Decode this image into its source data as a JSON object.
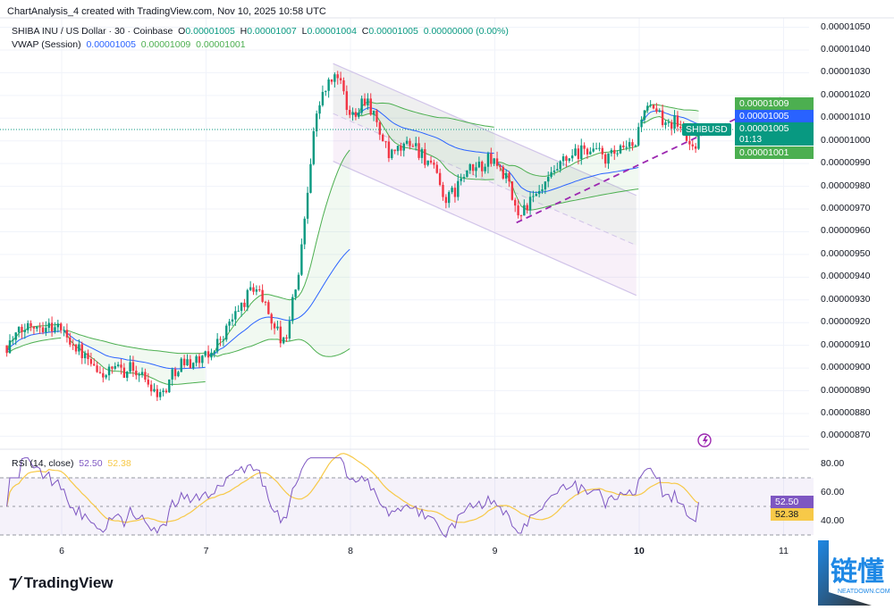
{
  "header": {
    "title": "ChartAnalysis_4 created with TradingView.com, Nov 10, 2025 10:58 UTC"
  },
  "legend": {
    "symbol": "SHIBA INU / US Dollar · 30 · Coinbase",
    "open_label": "O",
    "open": "0.00001005",
    "high_label": "H",
    "high": "0.00001007",
    "low_label": "L",
    "low": "0.00001004",
    "close_label": "C",
    "close": "0.00001005",
    "change": "0.00000000 (0.00%)",
    "vwap_label": "VWAP (Session)",
    "vwap": "0.00001005",
    "vwap_upper": "0.00001009",
    "vwap_lower": "0.00001001"
  },
  "price_tags": {
    "upper_band": "0.00001009",
    "vwap": "0.00001005",
    "last": "0.00001005",
    "countdown": "01:13",
    "lower_band": "0.00001001",
    "symbol": "SHIBUSD"
  },
  "rsi": {
    "label": "RSI (14, close)",
    "value": "52.50",
    "ma": "52.38",
    "axis": [
      "80.00",
      "60.00",
      "40.00"
    ]
  },
  "colors": {
    "up": "#089981",
    "down": "#f23645",
    "vwap": "#2962ff",
    "band": "#4caf50",
    "rsi": "#7e57c2",
    "rsi_ma": "#f7c948",
    "trend": "#9c27b0"
  },
  "branding": {
    "logo": "TradingView",
    "watermark": "链懂",
    "watermark_sub": "NEATDOWN.COM"
  },
  "chart_data": {
    "type": "candlestick",
    "title": "SHIBA INU / US Dollar · 30 · Coinbase",
    "price_unit": "1e-8 USD",
    "x_ticks": [
      "6",
      "7",
      "8",
      "9",
      "10",
      "11"
    ],
    "y_ticks": [
      "0.00001050",
      "0.00001040",
      "0.00001030",
      "0.00001020",
      "0.00001010",
      "0.00001000",
      "0.00000990",
      "0.00000980",
      "0.00000970",
      "0.00000960",
      "0.00000950",
      "0.00000940",
      "0.00000930",
      "0.00000920",
      "0.00000910",
      "0.00000900",
      "0.00000890",
      "0.00000880",
      "0.00000870"
    ],
    "ylim": [
      868,
      1052
    ],
    "xlim": [
      5.57,
      11.1
    ],
    "close_path": [
      [
        5.62,
        910
      ],
      [
        5.79,
        920
      ],
      [
        5.98,
        918
      ],
      [
        6.07,
        912
      ],
      [
        6.25,
        897
      ],
      [
        6.5,
        900
      ],
      [
        6.69,
        888
      ],
      [
        6.81,
        902
      ],
      [
        7.0,
        904
      ],
      [
        7.12,
        915
      ],
      [
        7.34,
        937
      ],
      [
        7.43,
        925
      ],
      [
        7.54,
        910
      ],
      [
        7.65,
        945
      ],
      [
        7.74,
        1003
      ],
      [
        7.8,
        1020
      ],
      [
        7.91,
        1030
      ],
      [
        7.99,
        1010
      ],
      [
        8.11,
        1020
      ],
      [
        8.27,
        992
      ],
      [
        8.42,
        1000
      ],
      [
        8.55,
        990
      ],
      [
        8.67,
        973
      ],
      [
        8.79,
        985
      ],
      [
        8.98,
        992
      ],
      [
        9.07,
        985
      ],
      [
        9.15,
        968
      ],
      [
        9.29,
        975
      ],
      [
        9.47,
        990
      ],
      [
        9.66,
        997
      ],
      [
        9.78,
        992
      ],
      [
        9.97,
        998
      ],
      [
        10.03,
        1015
      ],
      [
        10.15,
        1010
      ],
      [
        10.27,
        1008
      ],
      [
        10.37,
        996
      ],
      [
        10.43,
        1005
      ]
    ],
    "channel": {
      "upper": [
        [
          7.88,
          1034
        ],
        [
          9.98,
          976
        ]
      ],
      "middle": [
        [
          7.88,
          1012
        ],
        [
          9.98,
          954
        ]
      ],
      "lower": [
        [
          7.88,
          991
        ],
        [
          9.98,
          932
        ]
      ]
    },
    "trendline": [
      [
        9.15,
        964
      ],
      [
        10.98,
        1019
      ]
    ],
    "rsi_levels": [
      70,
      50,
      30
    ],
    "rsi_ylim": [
      25,
      85
    ]
  }
}
